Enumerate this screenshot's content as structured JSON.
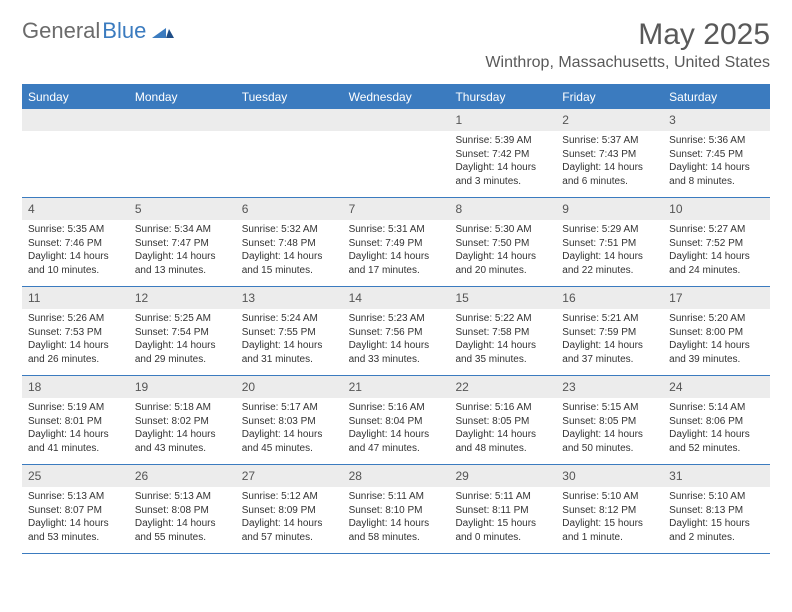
{
  "brand": {
    "part1": "General",
    "part2": "Blue"
  },
  "title": "May 2025",
  "location": "Winthrop, Massachusetts, United States",
  "colors": {
    "accent": "#3b7bbf",
    "grayText": "#595959",
    "cellHeader": "#ececec",
    "bodyText": "#333333",
    "background": "#ffffff"
  },
  "daysOfWeek": [
    "Sunday",
    "Monday",
    "Tuesday",
    "Wednesday",
    "Thursday",
    "Friday",
    "Saturday"
  ],
  "weeks": [
    [
      {
        "n": "",
        "sunrise": "",
        "sunset": "",
        "daylight": ""
      },
      {
        "n": "",
        "sunrise": "",
        "sunset": "",
        "daylight": ""
      },
      {
        "n": "",
        "sunrise": "",
        "sunset": "",
        "daylight": ""
      },
      {
        "n": "",
        "sunrise": "",
        "sunset": "",
        "daylight": ""
      },
      {
        "n": "1",
        "sunrise": "Sunrise: 5:39 AM",
        "sunset": "Sunset: 7:42 PM",
        "daylight": "Daylight: 14 hours and 3 minutes."
      },
      {
        "n": "2",
        "sunrise": "Sunrise: 5:37 AM",
        "sunset": "Sunset: 7:43 PM",
        "daylight": "Daylight: 14 hours and 6 minutes."
      },
      {
        "n": "3",
        "sunrise": "Sunrise: 5:36 AM",
        "sunset": "Sunset: 7:45 PM",
        "daylight": "Daylight: 14 hours and 8 minutes."
      }
    ],
    [
      {
        "n": "4",
        "sunrise": "Sunrise: 5:35 AM",
        "sunset": "Sunset: 7:46 PM",
        "daylight": "Daylight: 14 hours and 10 minutes."
      },
      {
        "n": "5",
        "sunrise": "Sunrise: 5:34 AM",
        "sunset": "Sunset: 7:47 PM",
        "daylight": "Daylight: 14 hours and 13 minutes."
      },
      {
        "n": "6",
        "sunrise": "Sunrise: 5:32 AM",
        "sunset": "Sunset: 7:48 PM",
        "daylight": "Daylight: 14 hours and 15 minutes."
      },
      {
        "n": "7",
        "sunrise": "Sunrise: 5:31 AM",
        "sunset": "Sunset: 7:49 PM",
        "daylight": "Daylight: 14 hours and 17 minutes."
      },
      {
        "n": "8",
        "sunrise": "Sunrise: 5:30 AM",
        "sunset": "Sunset: 7:50 PM",
        "daylight": "Daylight: 14 hours and 20 minutes."
      },
      {
        "n": "9",
        "sunrise": "Sunrise: 5:29 AM",
        "sunset": "Sunset: 7:51 PM",
        "daylight": "Daylight: 14 hours and 22 minutes."
      },
      {
        "n": "10",
        "sunrise": "Sunrise: 5:27 AM",
        "sunset": "Sunset: 7:52 PM",
        "daylight": "Daylight: 14 hours and 24 minutes."
      }
    ],
    [
      {
        "n": "11",
        "sunrise": "Sunrise: 5:26 AM",
        "sunset": "Sunset: 7:53 PM",
        "daylight": "Daylight: 14 hours and 26 minutes."
      },
      {
        "n": "12",
        "sunrise": "Sunrise: 5:25 AM",
        "sunset": "Sunset: 7:54 PM",
        "daylight": "Daylight: 14 hours and 29 minutes."
      },
      {
        "n": "13",
        "sunrise": "Sunrise: 5:24 AM",
        "sunset": "Sunset: 7:55 PM",
        "daylight": "Daylight: 14 hours and 31 minutes."
      },
      {
        "n": "14",
        "sunrise": "Sunrise: 5:23 AM",
        "sunset": "Sunset: 7:56 PM",
        "daylight": "Daylight: 14 hours and 33 minutes."
      },
      {
        "n": "15",
        "sunrise": "Sunrise: 5:22 AM",
        "sunset": "Sunset: 7:58 PM",
        "daylight": "Daylight: 14 hours and 35 minutes."
      },
      {
        "n": "16",
        "sunrise": "Sunrise: 5:21 AM",
        "sunset": "Sunset: 7:59 PM",
        "daylight": "Daylight: 14 hours and 37 minutes."
      },
      {
        "n": "17",
        "sunrise": "Sunrise: 5:20 AM",
        "sunset": "Sunset: 8:00 PM",
        "daylight": "Daylight: 14 hours and 39 minutes."
      }
    ],
    [
      {
        "n": "18",
        "sunrise": "Sunrise: 5:19 AM",
        "sunset": "Sunset: 8:01 PM",
        "daylight": "Daylight: 14 hours and 41 minutes."
      },
      {
        "n": "19",
        "sunrise": "Sunrise: 5:18 AM",
        "sunset": "Sunset: 8:02 PM",
        "daylight": "Daylight: 14 hours and 43 minutes."
      },
      {
        "n": "20",
        "sunrise": "Sunrise: 5:17 AM",
        "sunset": "Sunset: 8:03 PM",
        "daylight": "Daylight: 14 hours and 45 minutes."
      },
      {
        "n": "21",
        "sunrise": "Sunrise: 5:16 AM",
        "sunset": "Sunset: 8:04 PM",
        "daylight": "Daylight: 14 hours and 47 minutes."
      },
      {
        "n": "22",
        "sunrise": "Sunrise: 5:16 AM",
        "sunset": "Sunset: 8:05 PM",
        "daylight": "Daylight: 14 hours and 48 minutes."
      },
      {
        "n": "23",
        "sunrise": "Sunrise: 5:15 AM",
        "sunset": "Sunset: 8:05 PM",
        "daylight": "Daylight: 14 hours and 50 minutes."
      },
      {
        "n": "24",
        "sunrise": "Sunrise: 5:14 AM",
        "sunset": "Sunset: 8:06 PM",
        "daylight": "Daylight: 14 hours and 52 minutes."
      }
    ],
    [
      {
        "n": "25",
        "sunrise": "Sunrise: 5:13 AM",
        "sunset": "Sunset: 8:07 PM",
        "daylight": "Daylight: 14 hours and 53 minutes."
      },
      {
        "n": "26",
        "sunrise": "Sunrise: 5:13 AM",
        "sunset": "Sunset: 8:08 PM",
        "daylight": "Daylight: 14 hours and 55 minutes."
      },
      {
        "n": "27",
        "sunrise": "Sunrise: 5:12 AM",
        "sunset": "Sunset: 8:09 PM",
        "daylight": "Daylight: 14 hours and 57 minutes."
      },
      {
        "n": "28",
        "sunrise": "Sunrise: 5:11 AM",
        "sunset": "Sunset: 8:10 PM",
        "daylight": "Daylight: 14 hours and 58 minutes."
      },
      {
        "n": "29",
        "sunrise": "Sunrise: 5:11 AM",
        "sunset": "Sunset: 8:11 PM",
        "daylight": "Daylight: 15 hours and 0 minutes."
      },
      {
        "n": "30",
        "sunrise": "Sunrise: 5:10 AM",
        "sunset": "Sunset: 8:12 PM",
        "daylight": "Daylight: 15 hours and 1 minute."
      },
      {
        "n": "31",
        "sunrise": "Sunrise: 5:10 AM",
        "sunset": "Sunset: 8:13 PM",
        "daylight": "Daylight: 15 hours and 2 minutes."
      }
    ]
  ]
}
